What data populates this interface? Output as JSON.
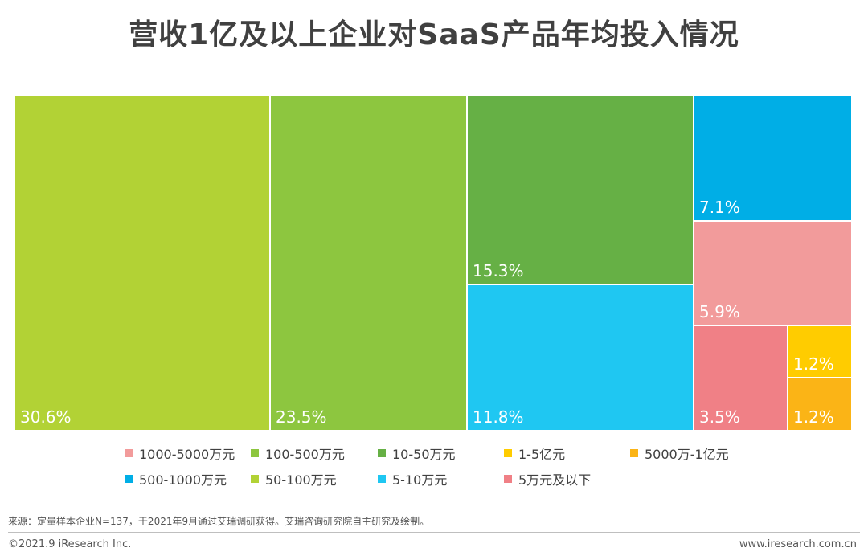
{
  "title": "营收1亿及以上企业对SaaS产品年均投入情况",
  "chart_data": {
    "type": "treemap",
    "unit": "%",
    "items": [
      {
        "name": "50-100万元",
        "value": 30.6,
        "label": "30.6%",
        "color": "#b2d235"
      },
      {
        "name": "100-500万元",
        "value": 23.5,
        "label": "23.5%",
        "color": "#8dc63f"
      },
      {
        "name": "10-50万元",
        "value": 15.3,
        "label": "15.3%",
        "color": "#66b045"
      },
      {
        "name": "5-10万元",
        "value": 11.8,
        "label": "11.8%",
        "color": "#1fc7f2"
      },
      {
        "name": "500-1000万元",
        "value": 7.1,
        "label": "7.1%",
        "color": "#00aee6"
      },
      {
        "name": "1000-5000万元",
        "value": 5.9,
        "label": "5.9%",
        "color": "#f29b9b"
      },
      {
        "name": "5万元及以下",
        "value": 3.5,
        "label": "3.5%",
        "color": "#f08086"
      },
      {
        "name": "1-5亿元",
        "value": 1.2,
        "label": "1.2%",
        "color": "#ffcc00"
      },
      {
        "name": "5000万-1亿元",
        "value": 1.2,
        "label": "1.2%",
        "color": "#fbb416"
      }
    ],
    "legend": [
      [
        "1000-5000万元",
        "100-500万元",
        "10-50万元",
        "1-5亿元",
        "5000万-1亿元"
      ],
      [
        "500-1000万元",
        "50-100万元",
        "5-10万元",
        "5万元及以下"
      ]
    ],
    "legend_position": "bottom"
  },
  "footer": {
    "source": "来源：定量样本企业N=137，于2021年9月通过艾瑞调研获得。艾瑞咨询研究院自主研究及绘制。",
    "copyright": "©2021.9 iResearch Inc.",
    "website": "www.iresearch.com.cn"
  }
}
